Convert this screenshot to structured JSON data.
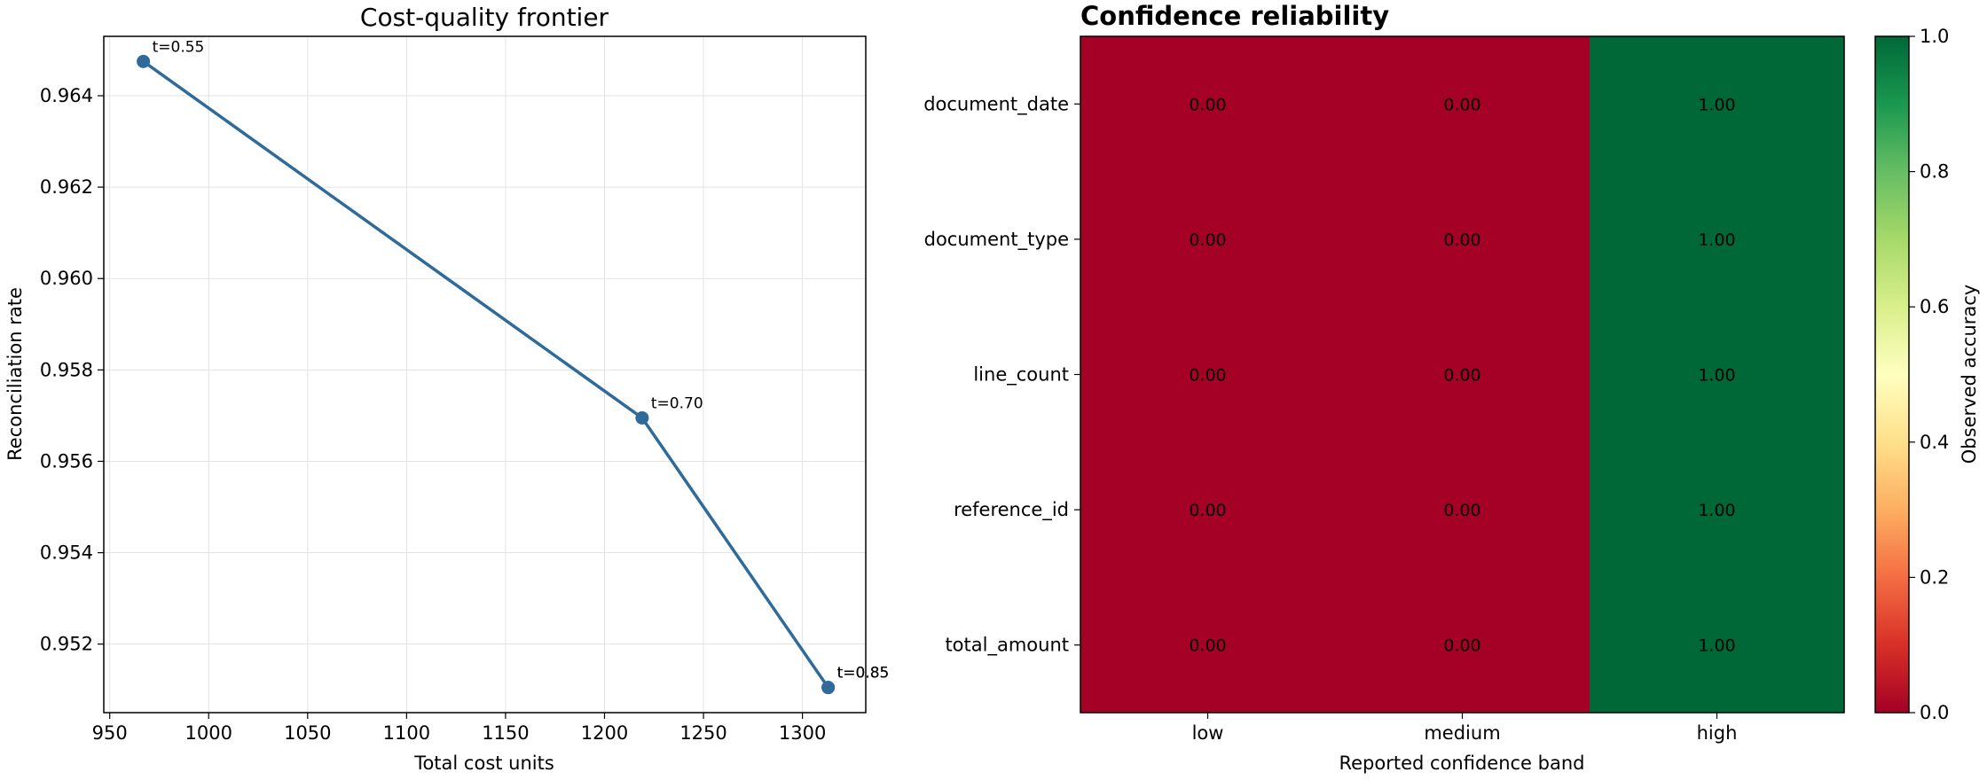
{
  "chart_data": [
    {
      "type": "line",
      "title": "Cost-quality frontier",
      "xlabel": "Total cost units",
      "ylabel": "Reconciliation rate",
      "xlim": [
        947,
        1332
      ],
      "ylim": [
        0.9505,
        0.9653
      ],
      "xticks": [
        950,
        1000,
        1050,
        1100,
        1150,
        1200,
        1250,
        1300
      ],
      "yticks": [
        0.952,
        0.954,
        0.956,
        0.958,
        0.96,
        0.962,
        0.964
      ],
      "grid": true,
      "color": "#2f6b9a",
      "points": [
        {
          "x": 967,
          "y": 0.96475,
          "label": "t=0.55"
        },
        {
          "x": 1219,
          "y": 0.95695,
          "label": "t=0.70"
        },
        {
          "x": 1313,
          "y": 0.95105,
          "label": "t=0.85"
        },
        {
          "x": 1313,
          "y": 0.95105,
          "label": "t=0.85"
        }
      ]
    },
    {
      "type": "heatmap",
      "title": "Confidence reliability",
      "xlabel": "Reported confidence band",
      "ylabel": "",
      "x_categories": [
        "low",
        "medium",
        "high"
      ],
      "y_categories": [
        "document_date",
        "document_type",
        "line_count",
        "reference_id",
        "total_amount"
      ],
      "values": [
        [
          0.0,
          0.0,
          1.0
        ],
        [
          0.0,
          0.0,
          1.0
        ],
        [
          0.0,
          0.0,
          1.0
        ],
        [
          0.0,
          0.0,
          1.0
        ],
        [
          0.0,
          0.0,
          1.0
        ]
      ],
      "cell_labels": [
        [
          "0.00",
          "0.00",
          "1.00"
        ],
        [
          "0.00",
          "0.00",
          "1.00"
        ],
        [
          "0.00",
          "0.00",
          "1.00"
        ],
        [
          "0.00",
          "0.00",
          "1.00"
        ],
        [
          "0.00",
          "0.00",
          "1.00"
        ]
      ],
      "colormap": "RdYlGn",
      "colorbar": {
        "label": "Observed accuracy",
        "range": [
          0.0,
          1.0
        ],
        "ticks": [
          "0.0",
          "0.2",
          "0.4",
          "0.6",
          "0.8",
          "1.0"
        ]
      }
    }
  ]
}
